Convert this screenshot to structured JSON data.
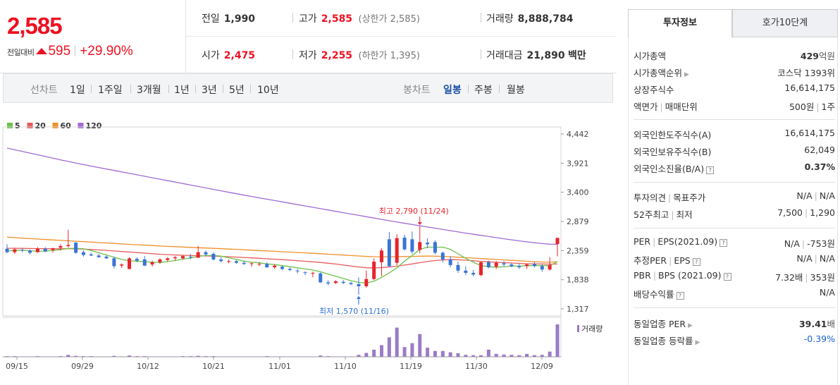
{
  "price": {
    "current": "2,585",
    "diff_label": "전일대비",
    "diff_value": "595",
    "diff_rate": "+29.90%"
  },
  "quote": {
    "prev_close_label": "전일",
    "prev_close": "1,990",
    "high_label": "고가",
    "high": "2,585",
    "upper_limit_label": "상한가",
    "upper_limit": "2,585",
    "volume_label": "거래량",
    "volume": "8,888,784",
    "open_label": "시가",
    "open": "2,475",
    "low_label": "저가",
    "low": "2,255",
    "lower_limit_label": "하한가",
    "lower_limit": "1,395",
    "turnover_label": "거래대금",
    "turnover": "21,890",
    "turnover_unit": "백만"
  },
  "period_bar": {
    "line_label": "선차트",
    "line_periods": [
      "1일",
      "1주일",
      "3개월",
      "1년",
      "3년",
      "5년",
      "10년"
    ],
    "candle_label": "봉차트",
    "candle_periods": [
      "일봉",
      "주봉",
      "월봉"
    ],
    "active_candle": "일봉"
  },
  "chart_data": {
    "type": "candlestick",
    "legend": [
      {
        "name": "5",
        "color": "#6cc24a"
      },
      {
        "name": "20",
        "color": "#e85a5a"
      },
      {
        "name": "60",
        "color": "#f0902a"
      },
      {
        "name": "120",
        "color": "#a06bd6"
      }
    ],
    "y_ticks": [
      "4,442",
      "3,921",
      "3,400",
      "2,879",
      "2,359",
      "1,838",
      "1,317"
    ],
    "ylim": [
      1317,
      4442
    ],
    "x_ticks": [
      "09/15",
      "09/29",
      "10/12",
      "10/21",
      "11/01",
      "11/10",
      "11/19",
      "11/30",
      "12/09"
    ],
    "high_annotation": "최고 2,790 (11/24)",
    "low_annotation": "최저 1,570 (11/16)",
    "volume_label": "거래량",
    "up_color": "#e8242b",
    "down_color": "#3a74d6",
    "candles": [
      {
        "o": 2390,
        "h": 2470,
        "l": 2310,
        "c": 2330
      },
      {
        "o": 2330,
        "h": 2410,
        "l": 2300,
        "c": 2380
      },
      {
        "o": 2370,
        "h": 2400,
        "l": 2330,
        "c": 2360
      },
      {
        "o": 2360,
        "h": 2380,
        "l": 2290,
        "c": 2320
      },
      {
        "o": 2330,
        "h": 2420,
        "l": 2320,
        "c": 2390
      },
      {
        "o": 2390,
        "h": 2420,
        "l": 2330,
        "c": 2340
      },
      {
        "o": 2370,
        "h": 2410,
        "l": 2320,
        "c": 2400
      },
      {
        "o": 2410,
        "h": 2470,
        "l": 2360,
        "c": 2440
      },
      {
        "o": 2440,
        "h": 2730,
        "l": 2410,
        "c": 2460
      },
      {
        "o": 2500,
        "h": 2510,
        "l": 2300,
        "c": 2320
      },
      {
        "o": 2330,
        "h": 2360,
        "l": 2250,
        "c": 2280
      },
      {
        "o": 2290,
        "h": 2320,
        "l": 2260,
        "c": 2270
      },
      {
        "o": 2270,
        "h": 2300,
        "l": 2230,
        "c": 2240
      },
      {
        "o": 2250,
        "h": 2270,
        "l": 2210,
        "c": 2220
      },
      {
        "o": 2220,
        "h": 2250,
        "l": 2040,
        "c": 2080
      },
      {
        "o": 2090,
        "h": 2130,
        "l": 2050,
        "c": 2110
      },
      {
        "o": 2030,
        "h": 2240,
        "l": 2020,
        "c": 2220
      },
      {
        "o": 2210,
        "h": 2240,
        "l": 2150,
        "c": 2180
      },
      {
        "o": 2200,
        "h": 2260,
        "l": 2080,
        "c": 2090
      },
      {
        "o": 2110,
        "h": 2180,
        "l": 2070,
        "c": 2150
      },
      {
        "o": 2150,
        "h": 2220,
        "l": 2120,
        "c": 2200
      },
      {
        "o": 2190,
        "h": 2240,
        "l": 2160,
        "c": 2220
      },
      {
        "o": 2220,
        "h": 2260,
        "l": 2180,
        "c": 2240
      },
      {
        "o": 2220,
        "h": 2280,
        "l": 2200,
        "c": 2260
      },
      {
        "o": 2250,
        "h": 2300,
        "l": 2200,
        "c": 2240
      },
      {
        "o": 2230,
        "h": 2440,
        "l": 2230,
        "c": 2330
      },
      {
        "o": 2330,
        "h": 2360,
        "l": 2260,
        "c": 2290
      },
      {
        "o": 2300,
        "h": 2330,
        "l": 2180,
        "c": 2200
      },
      {
        "o": 2200,
        "h": 2240,
        "l": 2150,
        "c": 2170
      },
      {
        "o": 2170,
        "h": 2200,
        "l": 2130,
        "c": 2170
      },
      {
        "o": 2170,
        "h": 2190,
        "l": 2120,
        "c": 2140
      },
      {
        "o": 2140,
        "h": 2170,
        "l": 2100,
        "c": 2120
      },
      {
        "o": 2120,
        "h": 2150,
        "l": 2070,
        "c": 2130
      },
      {
        "o": 2120,
        "h": 2150,
        "l": 2080,
        "c": 2120
      },
      {
        "o": 2120,
        "h": 2150,
        "l": 2050,
        "c": 2060
      },
      {
        "o": 2060,
        "h": 2110,
        "l": 2030,
        "c": 2090
      },
      {
        "o": 2070,
        "h": 2090,
        "l": 2010,
        "c": 2030
      },
      {
        "o": 2030,
        "h": 2060,
        "l": 1990,
        "c": 2010
      },
      {
        "o": 2000,
        "h": 2030,
        "l": 1950,
        "c": 1990
      },
      {
        "o": 1970,
        "h": 1990,
        "l": 1920,
        "c": 1960
      },
      {
        "o": 1950,
        "h": 1980,
        "l": 1880,
        "c": 1960
      },
      {
        "o": 1950,
        "h": 1970,
        "l": 1780,
        "c": 1790
      },
      {
        "o": 1790,
        "h": 1830,
        "l": 1740,
        "c": 1770
      },
      {
        "o": 1780,
        "h": 1830,
        "l": 1760,
        "c": 1810
      },
      {
        "o": 1800,
        "h": 1830,
        "l": 1760,
        "c": 1780
      },
      {
        "o": 1780,
        "h": 1800,
        "l": 1740,
        "c": 1760
      },
      {
        "o": 1760,
        "h": 1880,
        "l": 1570,
        "c": 1720
      },
      {
        "o": 1720,
        "h": 2000,
        "l": 1700,
        "c": 1850
      },
      {
        "o": 1850,
        "h": 2220,
        "l": 1830,
        "c": 2160
      },
      {
        "o": 2150,
        "h": 2400,
        "l": 1900,
        "c": 2360
      },
      {
        "o": 2560,
        "h": 2690,
        "l": 2060,
        "c": 2080
      },
      {
        "o": 2140,
        "h": 2650,
        "l": 2100,
        "c": 2580
      },
      {
        "o": 2590,
        "h": 2640,
        "l": 2360,
        "c": 2380
      },
      {
        "o": 2560,
        "h": 2700,
        "l": 2300,
        "c": 2340
      },
      {
        "o": 2370,
        "h": 2790,
        "l": 2310,
        "c": 2510
      },
      {
        "o": 2500,
        "h": 2580,
        "l": 2400,
        "c": 2470
      },
      {
        "o": 2510,
        "h": 2540,
        "l": 2290,
        "c": 2320
      },
      {
        "o": 2320,
        "h": 2340,
        "l": 2150,
        "c": 2200
      },
      {
        "o": 2200,
        "h": 2260,
        "l": 2060,
        "c": 2100
      },
      {
        "o": 2100,
        "h": 2160,
        "l": 1960,
        "c": 2000
      },
      {
        "o": 2000,
        "h": 2080,
        "l": 1920,
        "c": 1960
      },
      {
        "o": 1960,
        "h": 2010,
        "l": 1900,
        "c": 1930
      },
      {
        "o": 1920,
        "h": 2160,
        "l": 1900,
        "c": 2150
      },
      {
        "o": 2150,
        "h": 2180,
        "l": 2040,
        "c": 2060
      },
      {
        "o": 2070,
        "h": 2170,
        "l": 2030,
        "c": 2140
      },
      {
        "o": 2130,
        "h": 2170,
        "l": 2080,
        "c": 2110
      },
      {
        "o": 2110,
        "h": 2140,
        "l": 2060,
        "c": 2080
      },
      {
        "o": 2080,
        "h": 2120,
        "l": 2030,
        "c": 2060
      },
      {
        "o": 2080,
        "h": 2130,
        "l": 2030,
        "c": 2110
      },
      {
        "o": 2120,
        "h": 2160,
        "l": 2060,
        "c": 2080
      },
      {
        "o": 2080,
        "h": 2110,
        "l": 1980,
        "c": 2020
      },
      {
        "o": 2020,
        "h": 2240,
        "l": 2000,
        "c": 2100
      },
      {
        "o": 2475,
        "h": 2585,
        "l": 2255,
        "c": 2585
      }
    ],
    "volumes": [
      2,
      2,
      1,
      1,
      2,
      1,
      1,
      2,
      6,
      3,
      2,
      2,
      1,
      1,
      3,
      1,
      4,
      2,
      2,
      1,
      1,
      1,
      1,
      2,
      2,
      3,
      2,
      2,
      1,
      1,
      1,
      1,
      1,
      1,
      2,
      1,
      1,
      1,
      1,
      1,
      1,
      4,
      2,
      1,
      1,
      1,
      6,
      12,
      22,
      36,
      60,
      90,
      30,
      42,
      70,
      28,
      18,
      18,
      14,
      11,
      6,
      5,
      5,
      22,
      9,
      7,
      6,
      5,
      9,
      5,
      6,
      16,
      100
    ],
    "ma5": [
      2350,
      2360,
      2365,
      2355,
      2345,
      2350,
      2360,
      2375,
      2395,
      2400,
      2390,
      2360,
      2320,
      2280,
      2240,
      2200,
      2175,
      2170,
      2160,
      2150,
      2145,
      2160,
      2180,
      2205,
      2225,
      2255,
      2270,
      2270,
      2260,
      2230,
      2200,
      2170,
      2150,
      2140,
      2120,
      2110,
      2090,
      2070,
      2050,
      2030,
      2010,
      1980,
      1940,
      1900,
      1860,
      1820,
      1790,
      1780,
      1810,
      1880,
      1960,
      2050,
      2170,
      2270,
      2380,
      2420,
      2420,
      2420,
      2380,
      2300,
      2220,
      2150,
      2090,
      2070,
      2060,
      2070,
      2080,
      2080,
      2090,
      2090,
      2090,
      2090,
      2160
    ],
    "ma20": [
      2400,
      2400,
      2398,
      2395,
      2393,
      2392,
      2390,
      2390,
      2392,
      2390,
      2385,
      2378,
      2370,
      2362,
      2352,
      2342,
      2332,
      2322,
      2312,
      2302,
      2292,
      2286,
      2280,
      2275,
      2270,
      2266,
      2262,
      2258,
      2254,
      2248,
      2242,
      2236,
      2228,
      2220,
      2212,
      2204,
      2196,
      2188,
      2178,
      2168,
      2158,
      2146,
      2132,
      2118,
      2100,
      2082,
      2066,
      2052,
      2048,
      2054,
      2065,
      2080,
      2100,
      2120,
      2142,
      2162,
      2180,
      2192,
      2196,
      2194,
      2186,
      2176,
      2166,
      2158,
      2150,
      2142,
      2136,
      2130,
      2124,
      2120,
      2118,
      2116,
      2118
    ],
    "ma60": [
      2600,
      2590,
      2580,
      2572,
      2564,
      2556,
      2548,
      2540,
      2533,
      2526,
      2518,
      2510,
      2502,
      2494,
      2486,
      2478,
      2470,
      2462,
      2455,
      2448,
      2440,
      2434,
      2428,
      2422,
      2416,
      2410,
      2404,
      2398,
      2392,
      2386,
      2380,
      2373,
      2366,
      2359,
      2352,
      2345,
      2338,
      2331,
      2324,
      2317,
      2310,
      2302,
      2294,
      2286,
      2278,
      2270,
      2262,
      2254,
      2250,
      2248,
      2248,
      2250,
      2252,
      2255,
      2258,
      2260,
      2258,
      2254,
      2248,
      2240,
      2232,
      2224,
      2216,
      2208,
      2200,
      2192,
      2184,
      2176,
      2168,
      2160,
      2154,
      2150,
      2160
    ],
    "ma120": [
      4190,
      4160,
      4130,
      4100,
      4070,
      4040,
      4010,
      3980,
      3950,
      3922,
      3895,
      3868,
      3842,
      3816,
      3790,
      3764,
      3738,
      3712,
      3686,
      3660,
      3634,
      3608,
      3582,
      3556,
      3530,
      3504,
      3478,
      3452,
      3426,
      3400,
      3375,
      3350,
      3325,
      3300,
      3276,
      3252,
      3228,
      3204,
      3180,
      3156,
      3132,
      3108,
      3084,
      3060,
      3036,
      3012,
      2988,
      2964,
      2940,
      2916,
      2892,
      2868,
      2846,
      2824,
      2802,
      2780,
      2758,
      2736,
      2714,
      2692,
      2670,
      2650,
      2630,
      2610,
      2590,
      2570,
      2550,
      2532,
      2514,
      2498,
      2484,
      2472,
      2470
    ]
  },
  "tabs": {
    "invest_info": "투자정보",
    "quote10": "호가10단계"
  },
  "info": {
    "market_cap_label": "시가총액",
    "market_cap": "429",
    "market_cap_unit": "억원",
    "market_cap_rank_label": "시가총액순위",
    "market_cap_rank": "코스닥 1393위",
    "listed_shares_label": "상장주식수",
    "listed_shares": "16,614,175",
    "par_value_label": "액면가",
    "trading_unit_label": "매매단위",
    "par_value": "500원",
    "trading_unit": "1주",
    "foreign_limit_label": "외국인한도주식수(A)",
    "foreign_limit": "16,614,175",
    "foreign_held_label": "외국인보유주식수(B)",
    "foreign_held": "62,049",
    "foreign_ratio_label": "외국인소진율(B/A)",
    "foreign_ratio": "0.37%",
    "opinion_label": "투자의견",
    "target_label": "목표주가",
    "opinion": "N/A",
    "target": "N/A",
    "high52_label": "52주최고",
    "low52_label": "최저",
    "high52": "7,500",
    "low52": "1,290",
    "per_label": "PER",
    "eps_label": "EPS(2021.09)",
    "per": "N/A",
    "eps": "-753원",
    "est_per_label": "추정PER",
    "est_eps_label": "EPS",
    "est_per": "N/A",
    "est_eps": "N/A",
    "pbr_label": "PBR",
    "bps_label": "BPS (2021.09)",
    "pbr": "7.32배",
    "bps": "353원",
    "dividend_label": "배당수익률",
    "dividend": "N/A",
    "sector_per_label": "동일업종 PER",
    "sector_per": "39.41",
    "sector_per_unit": "배",
    "sector_change_label": "동일업종 등락률",
    "sector_change": "-0.39%"
  }
}
